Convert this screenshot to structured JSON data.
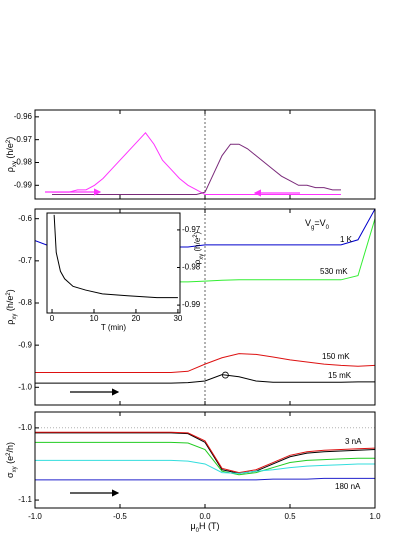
{
  "chart_data": [
    {
      "type": "line",
      "ylabel": [
        "ρ",
        "xy",
        " (h/e",
        "2",
        ")"
      ],
      "xlim": [
        -1,
        1
      ],
      "ylim": [
        -0.996,
        -0.957
      ],
      "yticks": [
        -0.96,
        -0.97,
        -0.98,
        -0.99
      ],
      "x": [
        -0.9,
        -0.85,
        -0.8,
        -0.75,
        -0.7,
        -0.65,
        -0.6,
        -0.55,
        -0.5,
        -0.45,
        -0.4,
        -0.35,
        -0.3,
        -0.25,
        -0.2,
        -0.15,
        -0.1,
        -0.05,
        0,
        0.05,
        0.1,
        0.15,
        0.2,
        0.25,
        0.3,
        0.35,
        0.4,
        0.45,
        0.5,
        0.55,
        0.6,
        0.65,
        0.7,
        0.75,
        0.8
      ],
      "series": [
        {
          "color": "#ff33ff",
          "values": [
            -0.993,
            -0.993,
            -0.993,
            -0.992,
            -0.992,
            -0.99,
            -0.987,
            -0.983,
            -0.979,
            -0.975,
            -0.971,
            -0.967,
            -0.972,
            -0.979,
            -0.983,
            -0.987,
            -0.99,
            -0.992,
            -0.994,
            -0.994,
            -0.994,
            -0.994,
            -0.994,
            -0.994,
            -0.994,
            -0.994,
            -0.994,
            -0.994,
            -0.994,
            -0.994,
            -0.994,
            -0.994,
            -0.994,
            -0.994,
            -0.994
          ]
        },
        {
          "color": "#7a2a7a",
          "values": [
            -0.994,
            -0.994,
            -0.994,
            -0.994,
            -0.994,
            -0.994,
            -0.994,
            -0.994,
            -0.994,
            -0.994,
            -0.994,
            -0.994,
            -0.994,
            -0.994,
            -0.994,
            -0.994,
            -0.994,
            -0.994,
            -0.993,
            -0.985,
            -0.977,
            -0.972,
            -0.972,
            -0.974,
            -0.977,
            -0.98,
            -0.983,
            -0.986,
            -0.988,
            -0.99,
            -0.99,
            -0.991,
            -0.991,
            -0.992,
            -0.992
          ]
        }
      ]
    },
    {
      "type": "line",
      "ylabel": [
        "ρ",
        "xy",
        " (h/e",
        "2",
        ")"
      ],
      "annotation": [
        "V",
        "g",
        "=V",
        "0"
      ],
      "xlim": [
        -1,
        1
      ],
      "ylim": [
        -1.042,
        -0.577
      ],
      "yticks": [
        -0.6,
        -0.7,
        -0.8,
        -0.9,
        {
          "value": -1,
          "label": "-1.0"
        }
      ],
      "x": [
        -1,
        -0.9,
        -0.8,
        -0.7,
        -0.6,
        -0.5,
        -0.4,
        -0.3,
        -0.2,
        -0.1,
        0,
        0.1,
        0.2,
        0.3,
        0.4,
        0.5,
        0.6,
        0.7,
        0.8,
        0.9,
        1
      ],
      "series": [
        {
          "name": "1 K",
          "color": "#0000cc",
          "values": [
            -0.652,
            -0.667,
            -0.667,
            -0.667,
            -0.667,
            -0.667,
            -0.667,
            -0.667,
            -0.667,
            -0.667,
            -0.662,
            -0.662,
            -0.662,
            -0.662,
            -0.662,
            -0.662,
            -0.662,
            -0.662,
            -0.662,
            -0.65,
            -0.577
          ]
        },
        {
          "name": "530 mK",
          "color": "#33ee33",
          "values": [
            null,
            null,
            null,
            null,
            null,
            null,
            null,
            null,
            -0.75,
            -0.75,
            -0.748,
            -0.746,
            -0.745,
            -0.745,
            -0.745,
            -0.745,
            -0.745,
            -0.745,
            -0.745,
            -0.735,
            -0.6
          ]
        },
        {
          "name": "150 mK",
          "color": "#dd1111",
          "values": [
            -0.965,
            -0.965,
            -0.965,
            -0.965,
            -0.965,
            -0.965,
            -0.965,
            -0.965,
            -0.965,
            -0.962,
            -0.945,
            -0.93,
            -0.92,
            -0.922,
            -0.928,
            -0.935,
            -0.94,
            -0.945,
            -0.948,
            -0.95,
            -0.948
          ]
        },
        {
          "name": "15 mK",
          "color": "#000000",
          "values": [
            -0.99,
            -0.99,
            -0.99,
            -0.99,
            -0.99,
            -0.99,
            -0.99,
            -0.99,
            -0.99,
            -0.989,
            -0.985,
            -0.97,
            -0.975,
            -0.985,
            -0.988,
            -0.988,
            -0.988,
            -0.988,
            -0.988,
            -0.987,
            -0.987
          ]
        }
      ],
      "marker": {
        "x": 0.12,
        "y": -0.971
      }
    },
    {
      "type": "line",
      "xlabel": "T (min)",
      "ylabel": [
        "ρ",
        "xy",
        " (h/e",
        "2",
        ")"
      ],
      "xlim": [
        -1.2,
        30.5
      ],
      "ylim": [
        -0.9921,
        -0.9655
      ],
      "xticks": [
        0,
        10,
        20,
        30
      ],
      "yticks": [
        -0.97,
        -0.98,
        -0.99
      ],
      "x": [
        0.5,
        1,
        2,
        3,
        5,
        8,
        12,
        18,
        25,
        30
      ],
      "series": [
        {
          "color": "#000000",
          "values": [
            -0.966,
            -0.976,
            -0.981,
            -0.983,
            -0.985,
            -0.986,
            -0.987,
            -0.9875,
            -0.988,
            -0.988
          ]
        }
      ]
    },
    {
      "type": "line",
      "xlabel": [
        "μ",
        "0",
        "H (T)"
      ],
      "ylabel": [
        "σ",
        "xy",
        " (e",
        "2",
        "/h)"
      ],
      "xlim": [
        -1,
        1
      ],
      "ylim": [
        -1.111,
        -0.978
      ],
      "xticks": [
        {
          "value": -1,
          "label": "-1.0"
        },
        -0.5,
        {
          "value": 0,
          "label": "0.0"
        },
        0.5,
        {
          "value": 1,
          "label": "1.0"
        }
      ],
      "yticks": [
        {
          "value": -1,
          "label": "-1.0"
        },
        -1.1
      ],
      "reference_line": -1,
      "x": [
        -1,
        -0.9,
        -0.8,
        -0.7,
        -0.6,
        -0.5,
        -0.4,
        -0.3,
        -0.2,
        -0.1,
        0,
        0.1,
        0.2,
        0.3,
        0.4,
        0.5,
        0.6,
        0.7,
        0.8,
        0.9,
        1
      ],
      "series": [
        {
          "name": "3 nA",
          "color": "#000000",
          "values": [
            -1.007,
            -1.007,
            -1.007,
            -1.007,
            -1.007,
            -1.007,
            -1.007,
            -1.007,
            -1.007,
            -1.008,
            -1.02,
            -1.058,
            -1.063,
            -1.06,
            -1.05,
            -1.04,
            -1.035,
            -1.033,
            -1.032,
            -1.031,
            -1.03
          ]
        },
        {
          "color": "#dd1111",
          "values": [
            -1.006,
            -1.006,
            -1.006,
            -1.006,
            -1.006,
            -1.006,
            -1.006,
            -1.006,
            -1.006,
            -1.007,
            -1.018,
            -1.056,
            -1.062,
            -1.058,
            -1.048,
            -1.038,
            -1.033,
            -1.031,
            -1.03,
            -1.029,
            -1.028
          ]
        },
        {
          "color": "#22cc22",
          "values": [
            -1.02,
            -1.02,
            -1.02,
            -1.02,
            -1.02,
            -1.02,
            -1.02,
            -1.02,
            -1.02,
            -1.021,
            -1.03,
            -1.06,
            -1.065,
            -1.062,
            -1.055,
            -1.048,
            -1.045,
            -1.044,
            -1.043,
            -1.042,
            -1.042
          ]
        },
        {
          "color": "#33dddd",
          "values": [
            -1.045,
            -1.045,
            -1.045,
            -1.045,
            -1.045,
            -1.045,
            -1.045,
            -1.045,
            -1.045,
            -1.046,
            -1.05,
            -1.062,
            -1.063,
            -1.06,
            -1.058,
            -1.055,
            -1.053,
            -1.052,
            -1.051,
            -1.05,
            -1.05
          ]
        },
        {
          "name": "180 nA",
          "color": "#2222cc",
          "values": [
            -1.072,
            -1.072,
            -1.072,
            -1.072,
            -1.072,
            -1.072,
            -1.072,
            -1.072,
            -1.072,
            -1.072,
            -1.072,
            -1.072,
            -1.072,
            -1.072,
            -1.071,
            -1.071,
            -1.071,
            -1.07,
            -1.07,
            -1.07,
            -1.07
          ]
        }
      ]
    }
  ]
}
